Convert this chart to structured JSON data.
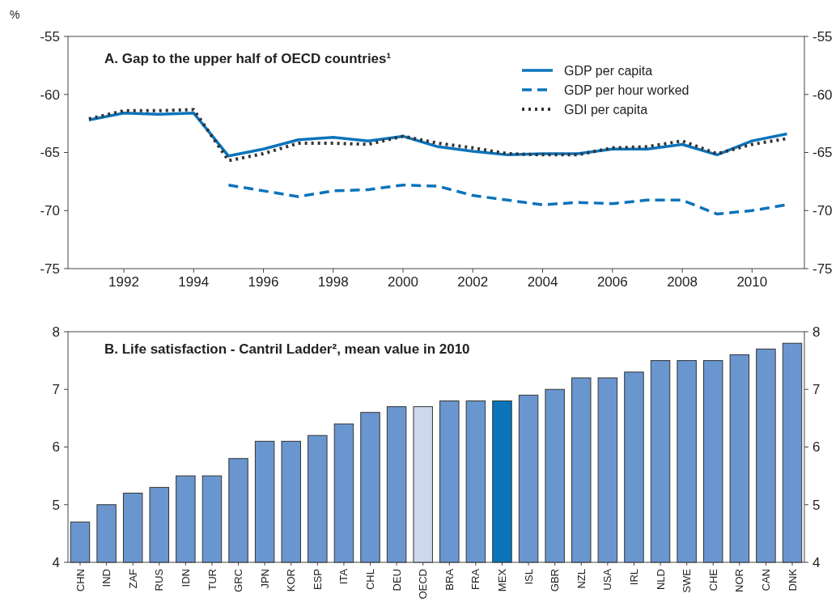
{
  "chart_data": [
    {
      "type": "line",
      "title": "A. Gap to the upper half of OECD countries¹",
      "ylabel": "%",
      "x": [
        1991,
        1992,
        1993,
        1994,
        1995,
        1996,
        1997,
        1998,
        1999,
        2000,
        2001,
        2002,
        2003,
        2004,
        2005,
        2006,
        2007,
        2008,
        2009,
        2010,
        2011
      ],
      "series": [
        {
          "name": "GDP per capita",
          "color": "#0b74bb",
          "line_style": "solid",
          "values": [
            -62.2,
            -61.6,
            -61.7,
            -61.6,
            -65.3,
            -64.7,
            -63.9,
            -63.7,
            -64.0,
            -63.6,
            -64.5,
            -64.9,
            -65.2,
            -65.1,
            -65.1,
            -64.7,
            -64.7,
            -64.3,
            -65.2,
            -64.0,
            -63.4
          ]
        },
        {
          "name": "GDP per hour worked",
          "color": "#0b74bb",
          "line_style": "dashed",
          "values": [
            null,
            null,
            null,
            null,
            -67.8,
            -68.3,
            -68.8,
            -68.3,
            -68.2,
            -67.8,
            -67.9,
            -68.7,
            -69.1,
            -69.5,
            -69.3,
            -69.4,
            -69.1,
            -69.1,
            -70.3,
            -70.0,
            -69.5
          ]
        },
        {
          "name": "GDI per capita",
          "color": "#333333",
          "line_style": "dotted",
          "values": [
            -62.1,
            -61.4,
            -61.4,
            -61.3,
            -65.7,
            -65.1,
            -64.2,
            -64.2,
            -64.3,
            -63.6,
            -64.2,
            -64.6,
            -65.1,
            -65.2,
            -65.2,
            -64.6,
            -64.5,
            -64.0,
            -65.1,
            -64.3,
            -63.8
          ]
        }
      ],
      "xlim": [
        1990.4,
        2011.5
      ],
      "xticks": [
        1992,
        1994,
        1996,
        1998,
        2000,
        2002,
        2004,
        2006,
        2008,
        2010
      ],
      "ylim": [
        -75,
        -55
      ],
      "yticks": [
        -75,
        -70,
        -65,
        -60,
        -55
      ],
      "y2lim": [
        -75,
        -55
      ],
      "y2ticks": [
        -75,
        -70,
        -65,
        -60,
        -55
      ],
      "legend": "top right",
      "grid": false
    },
    {
      "type": "bar",
      "title": "B. Life satisfaction - Cantril Ladder², mean value in 2010",
      "categories": [
        "CHN",
        "IND",
        "ZAF",
        "RUS",
        "IDN",
        "TUR",
        "GRC",
        "JPN",
        "KOR",
        "ESP",
        "ITA",
        "CHL",
        "DEU",
        "OECD",
        "BRA",
        "FRA",
        "MEX",
        "ISL",
        "GBR",
        "NZL",
        "USA",
        "IRL",
        "NLD",
        "SWE",
        "CHE",
        "NOR",
        "CAN",
        "DNK"
      ],
      "values": [
        4.7,
        5.0,
        5.2,
        5.3,
        5.5,
        5.5,
        5.8,
        6.1,
        6.1,
        6.2,
        6.4,
        6.6,
        6.7,
        6.7,
        6.8,
        6.8,
        6.8,
        6.9,
        7.0,
        7.2,
        7.2,
        7.3,
        7.5,
        7.5,
        7.5,
        7.6,
        7.7,
        7.8
      ],
      "colors": [
        "#6a96cf",
        "#6a96cf",
        "#6a96cf",
        "#6a96cf",
        "#6a96cf",
        "#6a96cf",
        "#6a96cf",
        "#6a96cf",
        "#6a96cf",
        "#6a96cf",
        "#6a96cf",
        "#6a96cf",
        "#6a96cf",
        "#cdd8ef",
        "#6a96cf",
        "#6a96cf",
        "#0b74bb",
        "#6a96cf",
        "#6a96cf",
        "#6a96cf",
        "#6a96cf",
        "#6a96cf",
        "#6a96cf",
        "#6a96cf",
        "#6a96cf",
        "#6a96cf",
        "#6a96cf",
        "#6a96cf"
      ],
      "ylim": [
        4,
        8
      ],
      "yticks": [
        4,
        5,
        6,
        7,
        8
      ],
      "y2lim": [
        4,
        8
      ],
      "y2ticks": [
        4,
        5,
        6,
        7,
        8
      ],
      "grid": false
    }
  ]
}
